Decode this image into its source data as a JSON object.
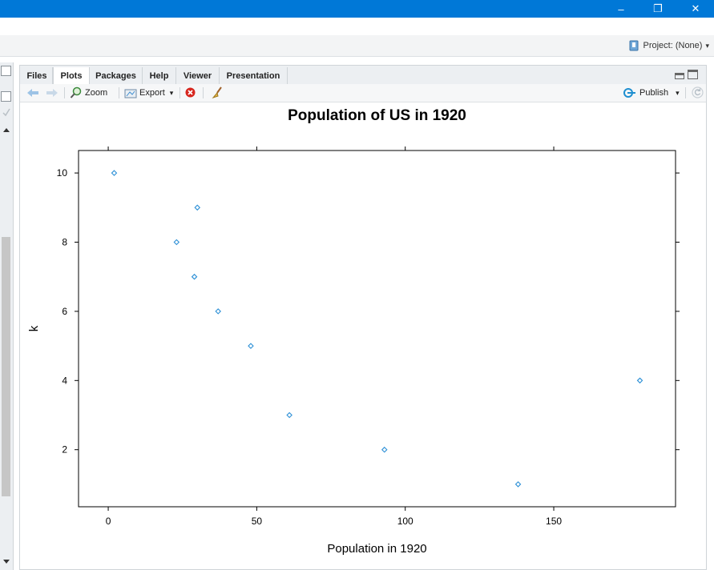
{
  "window": {
    "minimize": "–",
    "restore": "❐",
    "close": "✕"
  },
  "project": {
    "label": "Project: (None)",
    "caret": "▾"
  },
  "tabs": [
    {
      "label": "Files"
    },
    {
      "label": "Plots"
    },
    {
      "label": "Packages"
    },
    {
      "label": "Help"
    },
    {
      "label": "Viewer"
    },
    {
      "label": "Presentation"
    }
  ],
  "toolbar": {
    "zoom": "Zoom",
    "export": "Export",
    "export_caret": "▾",
    "publish": "Publish",
    "publish_caret": "▾"
  },
  "colors": {
    "accent": "#0078d7",
    "point": "#2b8fd6"
  },
  "chart_data": {
    "type": "scatter",
    "title": "Population of US in 1920",
    "xlabel": "Population in 1920",
    "ylabel": "k",
    "xlim": [
      -10,
      191
    ],
    "ylim": [
      0.35,
      10.65
    ],
    "xticks": [
      0,
      50,
      100,
      150
    ],
    "yticks": [
      2,
      4,
      6,
      8,
      10
    ],
    "points": [
      {
        "x": 2,
        "y": 10
      },
      {
        "x": 30,
        "y": 9
      },
      {
        "x": 23,
        "y": 8
      },
      {
        "x": 29,
        "y": 7
      },
      {
        "x": 37,
        "y": 6
      },
      {
        "x": 48,
        "y": 5
      },
      {
        "x": 179,
        "y": 4
      },
      {
        "x": 61,
        "y": 3
      },
      {
        "x": 93,
        "y": 2
      },
      {
        "x": 138,
        "y": 1
      }
    ],
    "grid": false,
    "marker": "diamond"
  }
}
